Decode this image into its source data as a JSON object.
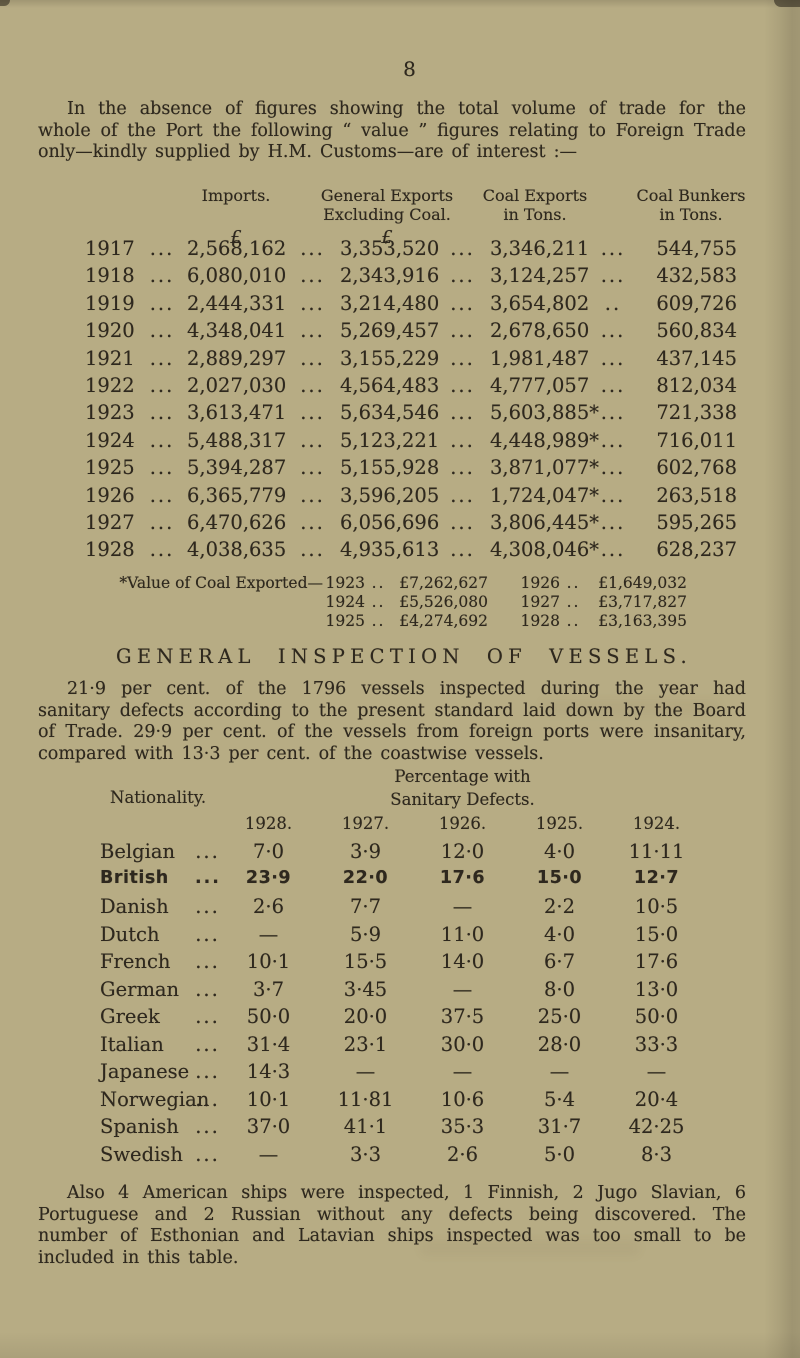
{
  "page": {
    "number": "8",
    "intro_paragraph": "In the absence of figures showing the total volume of trade for the whole of the Port the following “ value ” figures relating to Foreign Trade only—kindly supplied by H.M. Customs—are of interest :—"
  },
  "trade_table": {
    "col_headers": [
      {
        "line1": "Imports.",
        "line2": "",
        "unit": "£"
      },
      {
        "line1": "General Exports",
        "line2": "Excluding Coal.",
        "unit": "£"
      },
      {
        "line1": "Coal Exports",
        "line2": "in Tons.",
        "unit": ""
      },
      {
        "line1": "Coal Bunkers",
        "line2": "in Tons.",
        "unit": ""
      }
    ],
    "rows": [
      [
        "1917",
        "...",
        "2,568,162",
        "...",
        "3,353,520",
        "...",
        "3,346,211",
        "...",
        "544,755"
      ],
      [
        "1918",
        "...",
        "6,080,010",
        "...",
        "2,343,916",
        "...",
        "3,124,257",
        "...",
        "432,583"
      ],
      [
        "1919",
        "...",
        "2,444,331",
        "...",
        "3,214,480",
        "...",
        "3,654,802",
        "..",
        "609,726"
      ],
      [
        "1920",
        "...",
        "4,348,041",
        "...",
        "5,269,457",
        "...",
        "2,678,650",
        "...",
        "560,834"
      ],
      [
        "1921",
        "...",
        "2,889,297",
        "...",
        "3,155,229",
        "...",
        "1,981,487",
        "...",
        "437,145"
      ],
      [
        "1922",
        "...",
        "2,027,030",
        "...",
        "4,564,483",
        "...",
        "4,777,057",
        "...",
        "812,034"
      ],
      [
        "1923",
        "...",
        "3,613,471",
        "...",
        "5,634,546",
        "...",
        "5,603,885*",
        "...",
        "721,338"
      ],
      [
        "1924",
        "...",
        "5,488,317",
        "...",
        "5,123,221",
        "...",
        "4,448,989*",
        "...",
        "716,011"
      ],
      [
        "1925",
        "...",
        "5,394,287",
        "...",
        "5,155,928",
        "...",
        "3,871,077*",
        "...",
        "602,768"
      ],
      [
        "1926",
        "...",
        "6,365,779",
        "...",
        "3,596,205",
        "...",
        "1,724,047*",
        "...",
        "263,518"
      ],
      [
        "1927",
        "...",
        "6,470,626",
        "...",
        "6,056,696",
        "...",
        "3,806,445*",
        "...",
        "595,265"
      ],
      [
        "1928",
        "...",
        "4,038,635",
        "...",
        "4,935,613",
        "...",
        "4,308,046*",
        "...",
        "628,237"
      ]
    ]
  },
  "footnote": {
    "label": "*Value of Coal Exported—1923",
    "rows": [
      {
        "ly": "1923",
        "ld": "..",
        "lv": "£7,262,627",
        "ry": "1926",
        "rd": "..",
        "rv": "£1,649,032"
      },
      {
        "ly": "1924",
        "ld": "..",
        "lv": "£5,526,080",
        "ry": "1927",
        "rd": "..",
        "rv": "£3,717,827"
      },
      {
        "ly": "1925",
        "ld": "..",
        "lv": "£4,274,692",
        "ry": "1928",
        "rd": "..",
        "rv": "£3,163,395"
      }
    ]
  },
  "inspection": {
    "heading": "GENERAL INSPECTION OF VESSELS.",
    "paragraph": "21·9 per cent. of the 1796 vessels inspected during the year had sanitary defects according to the present standard laid down by the Board of Trade. 29·9 per cent. of the vessels from foreign ports were insanitary, compared with 13·3 per cent. of the coastwise vessels."
  },
  "nationality_table": {
    "label_header": "Nationality.",
    "group_header_line1": "Percentage with",
    "group_header_line2": "Sanitary Defects.",
    "year_headers": [
      "1928.",
      "1927.",
      "1926.",
      "1925.",
      "1924."
    ],
    "rows": [
      {
        "name": "Belgian",
        "dots": "...",
        "bold": false,
        "values": [
          "7·0",
          "3·9",
          "12·0",
          "4·0",
          "11·11"
        ]
      },
      {
        "name": "British",
        "dots": "...",
        "bold": true,
        "values": [
          "23·9",
          "22·0",
          "17·6",
          "15·0",
          "12·7"
        ]
      },
      {
        "name": "Danish",
        "dots": "...",
        "bold": false,
        "values": [
          "2·6",
          "7·7",
          "—",
          "2·2",
          "10·5"
        ]
      },
      {
        "name": "Dutch",
        "dots": "...",
        "bold": false,
        "values": [
          "—",
          "5·9",
          "11·0",
          "4·0",
          "15·0"
        ]
      },
      {
        "name": "French",
        "dots": "...",
        "bold": false,
        "values": [
          "10·1",
          "15·5",
          "14·0",
          "6·7",
          "17·6"
        ]
      },
      {
        "name": "German",
        "dots": "...",
        "bold": false,
        "values": [
          "3·7",
          "3·45",
          "—",
          "8·0",
          "13·0"
        ]
      },
      {
        "name": "Greek",
        "dots": "...",
        "bold": false,
        "values": [
          "50·0",
          "20·0",
          "37·5",
          "25·0",
          "50·0"
        ]
      },
      {
        "name": "Italian",
        "dots": "...",
        "bold": false,
        "values": [
          "31·4",
          "23·1",
          "30·0",
          "28·0",
          "33·3"
        ]
      },
      {
        "name": "Japanese",
        "dots": "...",
        "bold": false,
        "values": [
          "14·3",
          "—",
          "—",
          "—",
          "—"
        ]
      },
      {
        "name": "Norwegian",
        "dots": "...",
        "bold": false,
        "values": [
          "10·1",
          "11·81",
          "10·6",
          "5·4",
          "20·4"
        ]
      },
      {
        "name": "Spanish",
        "dots": "...",
        "bold": false,
        "values": [
          "37·0",
          "41·1",
          "35·3",
          "31·7",
          "42·25"
        ]
      },
      {
        "name": "Swedish",
        "dots": "...",
        "bold": false,
        "values": [
          "—",
          "3·3",
          "2·6",
          "5·0",
          "8·3"
        ]
      }
    ]
  },
  "closing_paragraph": "Also 4 American ships were inspected, 1 Finnish, 2 Jugo Slavian, 6 Portuguese and 2 Russian without any defects being discovered.  The number of Esthonian and Latavian ships inspected was too small to be included in this table."
}
